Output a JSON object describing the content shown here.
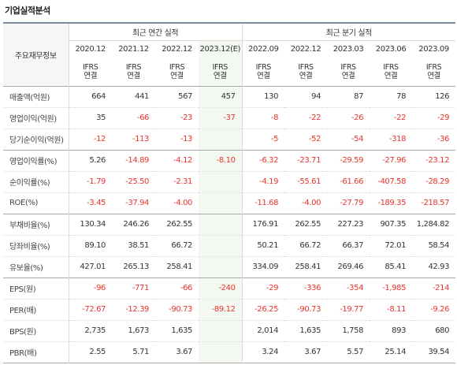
{
  "section_title": "기업실적분석",
  "row_header_label": "주요재무정보",
  "annual_label": "최근 연간 실적",
  "quarter_label": "최근 분기 실적",
  "periods": [
    "2020.12",
    "2021.12",
    "2022.12",
    "2023.12(E)",
    "2022.09",
    "2022.12",
    "2023.03",
    "2023.06",
    "2023.09"
  ],
  "ifrs": [
    "IFRS",
    "연결"
  ],
  "rows": [
    {
      "label": "매출액(억원)",
      "values": [
        "664",
        "441",
        "567",
        "457",
        "130",
        "94",
        "87",
        "78",
        "126"
      ]
    },
    {
      "label": "영업이익(억원)",
      "values": [
        "35",
        "-66",
        "-23",
        "-37",
        "-8",
        "-22",
        "-26",
        "-22",
        "-29"
      ]
    },
    {
      "label": "당기순이익(억원)",
      "values": [
        "-12",
        "-113",
        "-13",
        "",
        "-5",
        "-52",
        "-54",
        "-318",
        "-36"
      ]
    },
    {
      "label": "영업이익률(%)",
      "values": [
        "5.26",
        "-14.89",
        "-4.12",
        "-8.10",
        "-6.32",
        "-23.71",
        "-29.59",
        "-27.96",
        "-23.12"
      ]
    },
    {
      "label": "순이익률(%)",
      "values": [
        "-1.79",
        "-25.50",
        "-2.31",
        "",
        "-4.19",
        "-55.61",
        "-61.66",
        "-407.58",
        "-28.29"
      ]
    },
    {
      "label": "ROE(%)",
      "values": [
        "-3.45",
        "-37.94",
        "-4.00",
        "",
        "-11.68",
        "-4.00",
        "-27.79",
        "-189.35",
        "-218.57"
      ]
    },
    {
      "label": "부채비율(%)",
      "values": [
        "130.34",
        "246.26",
        "262.55",
        "",
        "176.91",
        "262.55",
        "227.23",
        "907.35",
        "1,284.82"
      ]
    },
    {
      "label": "당좌비율(%)",
      "values": [
        "89.10",
        "38.51",
        "66.72",
        "",
        "50.21",
        "66.72",
        "66.37",
        "72.01",
        "58.54"
      ]
    },
    {
      "label": "유보율(%)",
      "values": [
        "427.01",
        "265.13",
        "258.41",
        "",
        "334.09",
        "258.41",
        "269.46",
        "85.41",
        "42.93"
      ]
    },
    {
      "label": "EPS(원)",
      "values": [
        "-96",
        "-771",
        "-66",
        "-240",
        "-29",
        "-336",
        "-354",
        "-1,985",
        "-214"
      ]
    },
    {
      "label": "PER(배)",
      "values": [
        "-72.67",
        "-12.39",
        "-90.73",
        "-89.12",
        "-26.25",
        "-90.73",
        "-19.77",
        "-8.11",
        "-9.26"
      ]
    },
    {
      "label": "BPS(원)",
      "values": [
        "2,735",
        "1,673",
        "1,635",
        "",
        "2,014",
        "1,635",
        "1,758",
        "893",
        "680"
      ]
    },
    {
      "label": "PBR(배)",
      "values": [
        "2.55",
        "5.71",
        "3.67",
        "",
        "3.24",
        "3.67",
        "5.57",
        "25.14",
        "39.54"
      ]
    }
  ],
  "colors": {
    "negative": "#e8342c",
    "ifrs": "#ff6600",
    "estimate_bg": "#f3f9f1"
  }
}
